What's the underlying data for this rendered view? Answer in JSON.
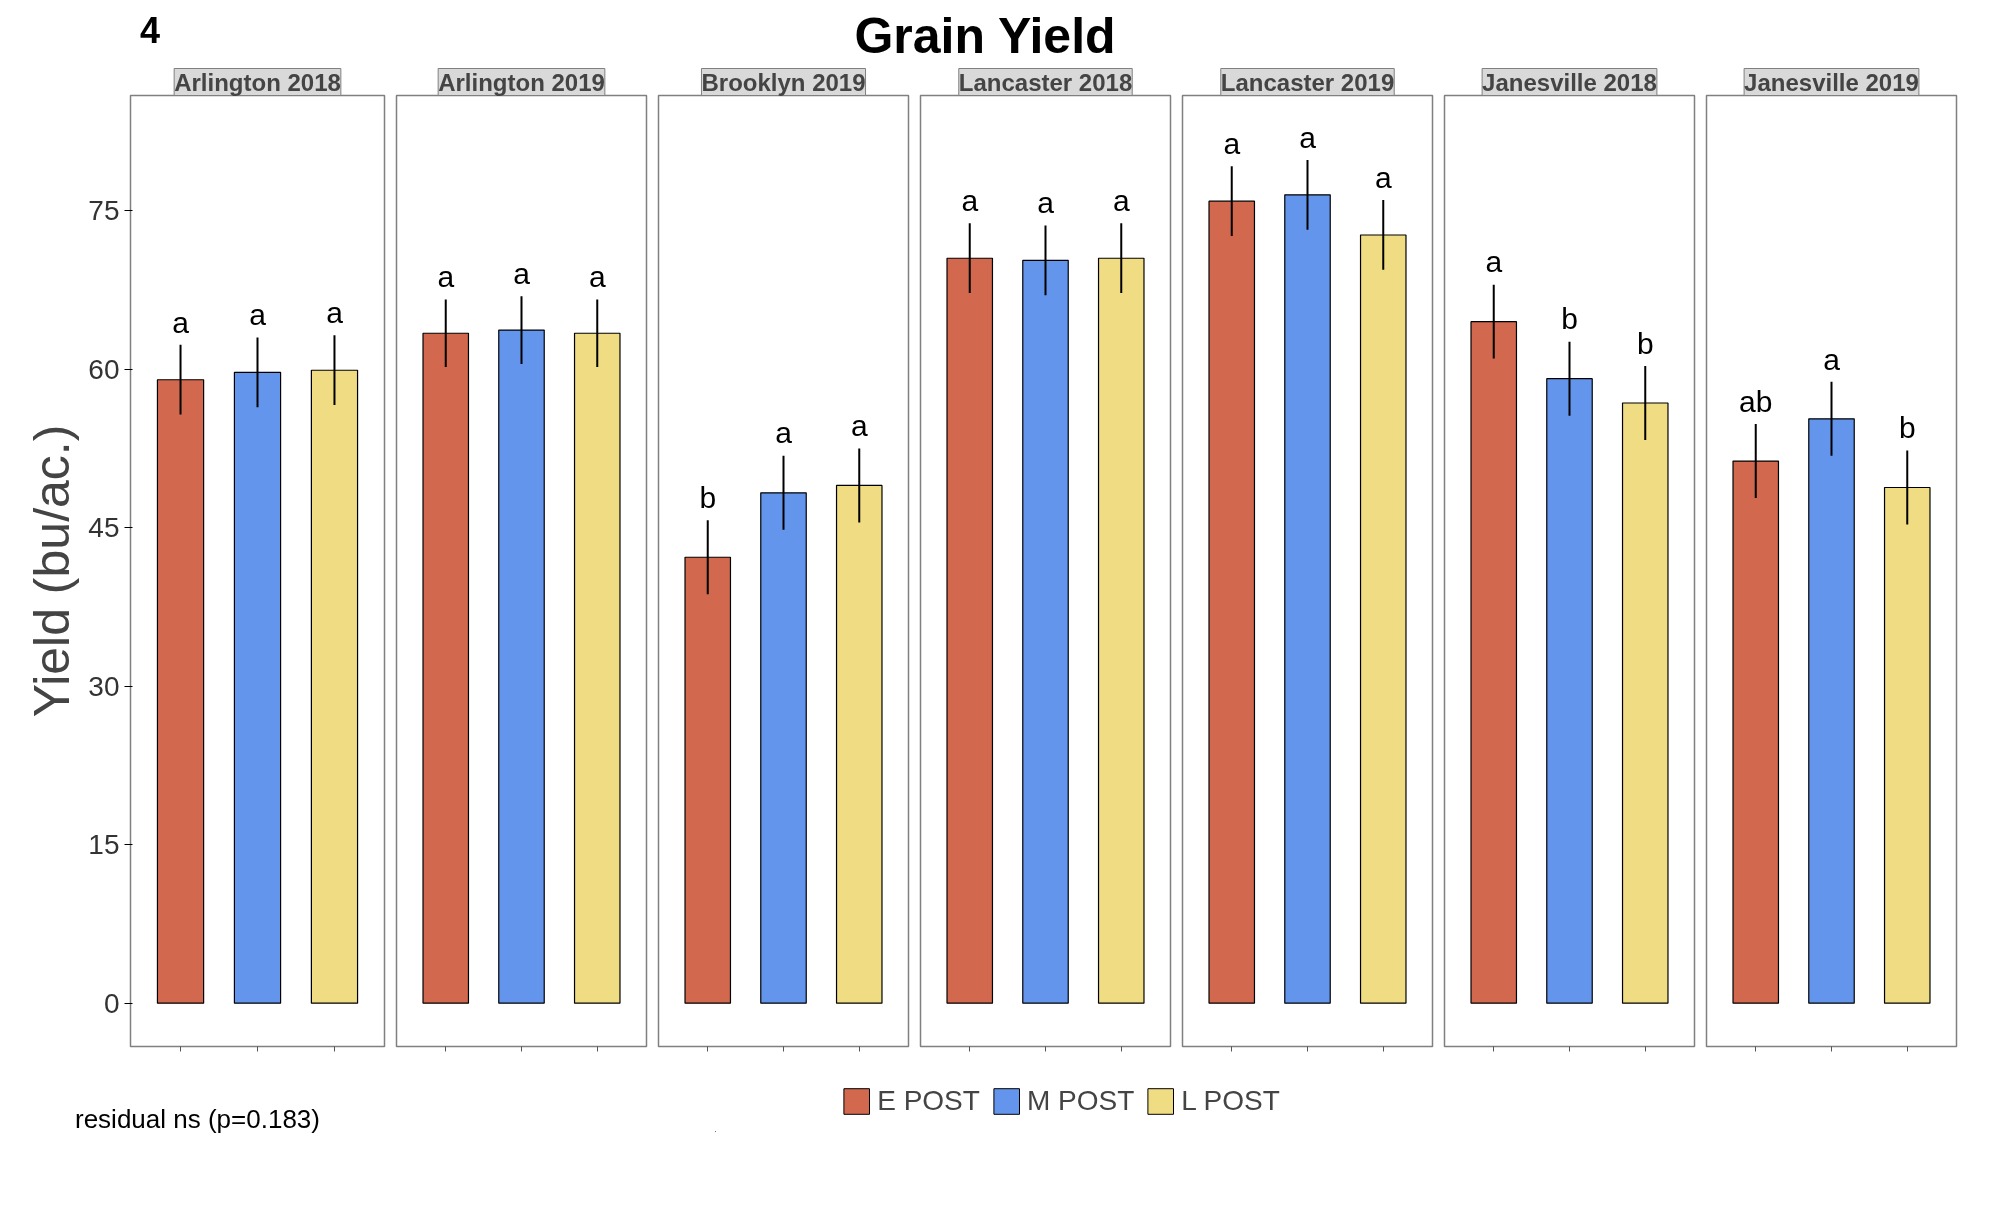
{
  "chart_data": {
    "type": "bar",
    "ylabel": "Yield (bu/ac.)",
    "categories": [
      "Arlington 2018",
      "Arlington 2019",
      "Brooklyn 2019",
      "Lancaster 2018",
      "Lancaster 2019",
      "Janesville 2018",
      "Janesville 2019"
    ],
    "ylim": [
      -4.1,
      85.9
    ],
    "yticks": [
      0,
      15,
      30,
      45,
      60,
      75
    ],
    "grid": false,
    "legend": "bottom",
    "annotations": [
      "4",
      "Grain Yield",
      "residual ns (p=0.183)"
    ],
    "series": [
      {
        "name": "E POST",
        "color": "#d2694e",
        "values": [
          59.0,
          63.4,
          42.2,
          70.5,
          75.9,
          64.5,
          51.3
        ],
        "errors": [
          3.3,
          3.2,
          3.5,
          3.3,
          3.3,
          3.5,
          3.5
        ],
        "value_labels": [
          "a",
          "a",
          "b",
          "a",
          "a",
          "a",
          "ab"
        ]
      },
      {
        "name": "M POST",
        "color": "#6495ed",
        "values": [
          59.7,
          63.7,
          48.3,
          70.3,
          76.5,
          59.1,
          55.3
        ],
        "errors": [
          3.3,
          3.2,
          3.5,
          3.3,
          3.3,
          3.5,
          3.5
        ],
        "value_labels": [
          "a",
          "a",
          "a",
          "a",
          "a",
          "b",
          "a"
        ]
      },
      {
        "name": "L POST",
        "color": "#f0dc82",
        "values": [
          59.9,
          63.4,
          49.0,
          70.5,
          72.7,
          56.8,
          48.8
        ],
        "errors": [
          3.3,
          3.2,
          3.5,
          3.3,
          3.3,
          3.5,
          3.5
        ],
        "value_labels": [
          "a",
          "a",
          "a",
          "a",
          "a",
          "b",
          "b"
        ]
      }
    ]
  }
}
